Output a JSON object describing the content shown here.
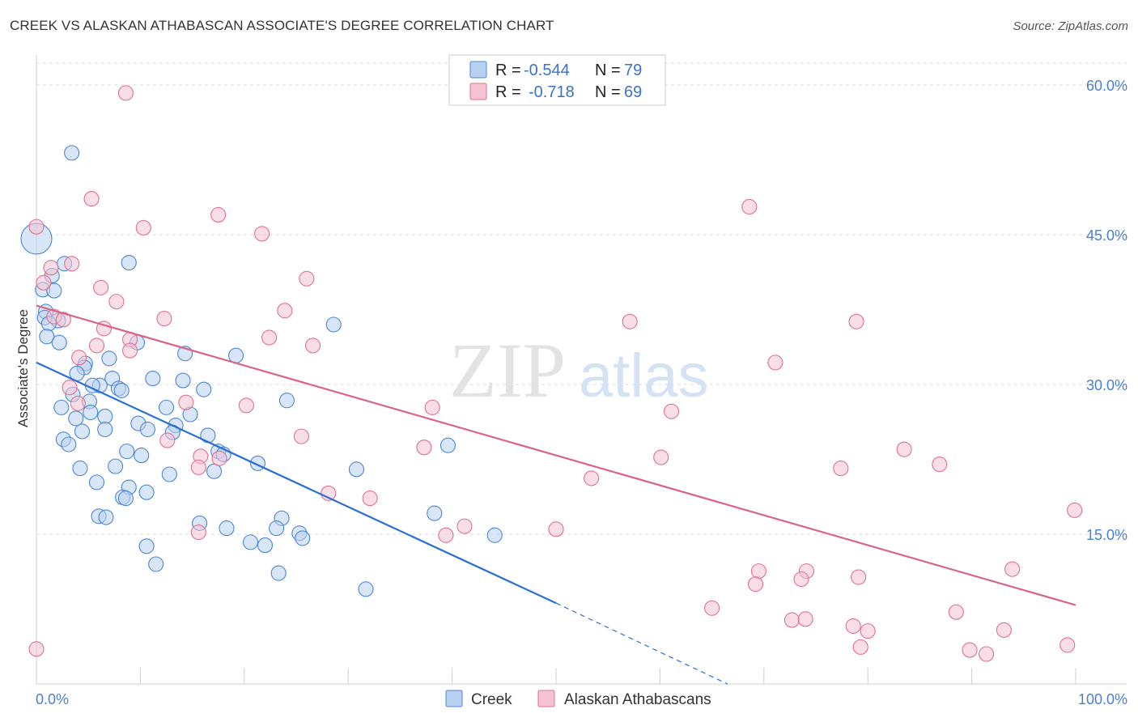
{
  "title": "CREEK VS ALASKAN ATHABASCAN ASSOCIATE'S DEGREE CORRELATION CHART",
  "source": "Source: ZipAtlas.com",
  "watermark": {
    "zip": "ZIP",
    "atlas": "atlas"
  },
  "colors": {
    "creek": "#4a86d8",
    "creek_fill": "#b9d1f1",
    "athabascan": "#e0708f",
    "athabascan_fill": "#f6c3d3",
    "tick_text": "#4a7fd0",
    "grid": "#d9d9d9"
  },
  "legend": {
    "rows": [
      {
        "r_label": "R =",
        "r_value": "-0.544",
        "n_label": "N =",
        "n_value": "79"
      },
      {
        "r_label": "R =",
        "r_value": "-0.718",
        "n_label": "N =",
        "n_value": "69"
      }
    ]
  },
  "bottom_legend": [
    {
      "label": "Creek"
    },
    {
      "label": "Alaskan Athabascans"
    }
  ],
  "chart_data": {
    "type": "scatter",
    "title": "CREEK VS ALASKAN ATHABASCAN ASSOCIATE'S DEGREE CORRELATION CHART",
    "xlabel": "",
    "ylabel": "Associate's Degree",
    "xlim": [
      0,
      100
    ],
    "ylim": [
      0,
      63
    ],
    "x_tick_labels": [
      "0.0%",
      "100.0%"
    ],
    "y_ticks": [
      15,
      30,
      45,
      60
    ],
    "y_tick_labels": [
      "15.0%",
      "30.0%",
      "45.0%",
      "60.0%"
    ],
    "grid": true,
    "legend_position": "top-center",
    "series": [
      {
        "name": "Creek",
        "r": -0.544,
        "n": 79,
        "trend": {
          "x": [
            0,
            50
          ],
          "y": [
            32.2,
            8.1
          ],
          "dashed_extension_to": [
            66.5,
            0
          ]
        },
        "points": [
          [
            0,
            44.6
          ],
          [
            3.4,
            53.2
          ],
          [
            8.9,
            42.2
          ],
          [
            2.7,
            42.1
          ],
          [
            1.5,
            40.9
          ],
          [
            0.6,
            39.5
          ],
          [
            1.7,
            39.4
          ],
          [
            0.9,
            37.3
          ],
          [
            0.8,
            36.7
          ],
          [
            2.1,
            36.4
          ],
          [
            1.2,
            36.1
          ],
          [
            28.6,
            36.0
          ],
          [
            1.0,
            34.8
          ],
          [
            2.2,
            34.2
          ],
          [
            9.7,
            34.2
          ],
          [
            14.3,
            33.1
          ],
          [
            19.2,
            32.9
          ],
          [
            7.0,
            32.6
          ],
          [
            4.7,
            32.1
          ],
          [
            4.6,
            31.7
          ],
          [
            3.9,
            31.1
          ],
          [
            11.2,
            30.6
          ],
          [
            14.1,
            30.4
          ],
          [
            7.3,
            30.6
          ],
          [
            6.1,
            29.9
          ],
          [
            5.4,
            29.9
          ],
          [
            7.9,
            29.6
          ],
          [
            8.2,
            29.4
          ],
          [
            16.1,
            29.5
          ],
          [
            3.5,
            29.0
          ],
          [
            24.1,
            28.4
          ],
          [
            5.1,
            28.3
          ],
          [
            2.4,
            27.7
          ],
          [
            12.5,
            27.7
          ],
          [
            5.2,
            27.2
          ],
          [
            14.8,
            27.0
          ],
          [
            3.8,
            26.6
          ],
          [
            6.6,
            26.8
          ],
          [
            9.8,
            26.1
          ],
          [
            13.4,
            25.9
          ],
          [
            10.7,
            25.5
          ],
          [
            6.6,
            25.5
          ],
          [
            4.4,
            25.3
          ],
          [
            13.1,
            25.2
          ],
          [
            16.5,
            24.9
          ],
          [
            2.6,
            24.5
          ],
          [
            3.1,
            24.0
          ],
          [
            39.6,
            23.9
          ],
          [
            17.5,
            23.3
          ],
          [
            8.7,
            23.3
          ],
          [
            18.0,
            23.0
          ],
          [
            10.1,
            22.9
          ],
          [
            21.3,
            22.1
          ],
          [
            4.2,
            21.6
          ],
          [
            7.6,
            21.8
          ],
          [
            30.8,
            21.5
          ],
          [
            17.1,
            21.3
          ],
          [
            12.8,
            21.0
          ],
          [
            5.8,
            20.2
          ],
          [
            8.9,
            19.7
          ],
          [
            10.6,
            19.2
          ],
          [
            8.3,
            18.7
          ],
          [
            8.6,
            18.6
          ],
          [
            38.3,
            17.1
          ],
          [
            6.0,
            16.8
          ],
          [
            6.7,
            16.7
          ],
          [
            23.6,
            16.6
          ],
          [
            15.7,
            16.1
          ],
          [
            18.3,
            15.6
          ],
          [
            23.1,
            15.6
          ],
          [
            25.3,
            15.1
          ],
          [
            25.6,
            14.6
          ],
          [
            44.1,
            14.9
          ],
          [
            20.6,
            14.2
          ],
          [
            22.0,
            13.9
          ],
          [
            10.6,
            13.8
          ],
          [
            11.5,
            12.0
          ],
          [
            23.3,
            11.1
          ],
          [
            31.7,
            9.5
          ]
        ]
      },
      {
        "name": "Alaskan Athabascans",
        "r": -0.718,
        "n": 69,
        "trend": {
          "x": [
            0,
            100
          ],
          "y": [
            37.9,
            7.9
          ]
        },
        "points": [
          [
            8.6,
            59.2
          ],
          [
            0,
            45.8
          ],
          [
            5.3,
            48.6
          ],
          [
            10.3,
            45.7
          ],
          [
            17.5,
            47.0
          ],
          [
            21.7,
            45.1
          ],
          [
            68.6,
            47.8
          ],
          [
            3.4,
            42.1
          ],
          [
            1.4,
            41.7
          ],
          [
            0.7,
            40.2
          ],
          [
            26.0,
            40.6
          ],
          [
            6.2,
            39.7
          ],
          [
            7.7,
            38.3
          ],
          [
            23.9,
            37.4
          ],
          [
            1.7,
            36.8
          ],
          [
            12.3,
            36.6
          ],
          [
            2.6,
            36.5
          ],
          [
            57.1,
            36.3
          ],
          [
            78.9,
            36.3
          ],
          [
            6.5,
            35.6
          ],
          [
            22.4,
            34.7
          ],
          [
            9.0,
            34.5
          ],
          [
            5.8,
            33.9
          ],
          [
            26.6,
            33.9
          ],
          [
            9.0,
            33.4
          ],
          [
            4.1,
            32.7
          ],
          [
            71.1,
            32.2
          ],
          [
            3.2,
            29.7
          ],
          [
            38.1,
            27.7
          ],
          [
            20.2,
            27.9
          ],
          [
            14.4,
            28.2
          ],
          [
            4.0,
            28.1
          ],
          [
            61.1,
            27.3
          ],
          [
            12.6,
            24.4
          ],
          [
            25.5,
            24.8
          ],
          [
            37.3,
            23.7
          ],
          [
            83.5,
            23.5
          ],
          [
            15.8,
            22.8
          ],
          [
            60.1,
            22.7
          ],
          [
            17.6,
            22.6
          ],
          [
            86.9,
            22.0
          ],
          [
            77.4,
            21.6
          ],
          [
            15.6,
            21.7
          ],
          [
            53.4,
            20.6
          ],
          [
            28.1,
            19.1
          ],
          [
            32.1,
            18.6
          ],
          [
            99.9,
            17.4
          ],
          [
            41.2,
            15.8
          ],
          [
            50.0,
            15.5
          ],
          [
            39.4,
            14.9
          ],
          [
            15.6,
            15.2
          ],
          [
            93.9,
            11.5
          ],
          [
            69.5,
            11.3
          ],
          [
            74.1,
            11.3
          ],
          [
            79.1,
            10.7
          ],
          [
            73.6,
            10.5
          ],
          [
            69.2,
            10.0
          ],
          [
            65.0,
            7.6
          ],
          [
            88.5,
            7.2
          ],
          [
            72.7,
            6.4
          ],
          [
            74.0,
            6.5
          ],
          [
            78.6,
            5.8
          ],
          [
            93.1,
            5.4
          ],
          [
            80.0,
            5.3
          ],
          [
            79.3,
            3.7
          ],
          [
            89.8,
            3.4
          ],
          [
            91.4,
            3.0
          ],
          [
            99.2,
            3.9
          ],
          [
            0.0,
            3.5
          ]
        ]
      }
    ]
  }
}
